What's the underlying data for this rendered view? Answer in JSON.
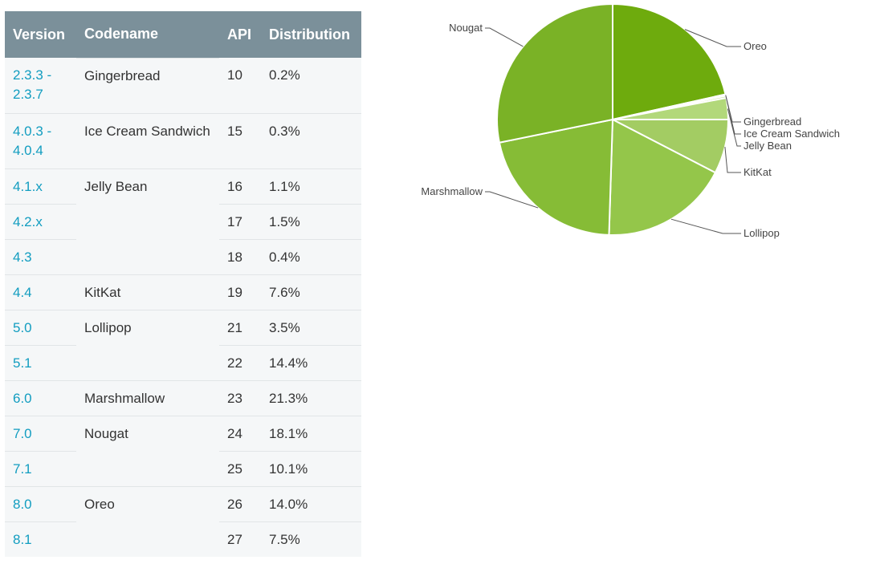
{
  "table": {
    "headers": [
      "Version",
      "Codename",
      "API",
      "Distribution"
    ],
    "rows": [
      {
        "version": "2.3.3 - 2.3.7",
        "codename": "Gingerbread",
        "api": "10",
        "distribution": "0.2%"
      },
      {
        "version": "4.0.3 - 4.0.4",
        "codename": "Ice Cream Sandwich",
        "api": "15",
        "distribution": "0.3%"
      },
      {
        "version": "4.1.x",
        "codename": "Jelly Bean",
        "api": "16",
        "distribution": "1.1%"
      },
      {
        "version": "4.2.x",
        "codename": "",
        "api": "17",
        "distribution": "1.5%"
      },
      {
        "version": "4.3",
        "codename": "",
        "api": "18",
        "distribution": "0.4%"
      },
      {
        "version": "4.4",
        "codename": "KitKat",
        "api": "19",
        "distribution": "7.6%"
      },
      {
        "version": "5.0",
        "codename": "Lollipop",
        "api": "21",
        "distribution": "3.5%"
      },
      {
        "version": "5.1",
        "codename": "",
        "api": "22",
        "distribution": "14.4%"
      },
      {
        "version": "6.0",
        "codename": "Marshmallow",
        "api": "23",
        "distribution": "21.3%"
      },
      {
        "version": "7.0",
        "codename": "Nougat",
        "api": "24",
        "distribution": "18.1%"
      },
      {
        "version": "7.1",
        "codename": "",
        "api": "25",
        "distribution": "10.1%"
      },
      {
        "version": "8.0",
        "codename": "Oreo",
        "api": "26",
        "distribution": "14.0%"
      },
      {
        "version": "8.1",
        "codename": "",
        "api": "27",
        "distribution": "7.5%"
      }
    ]
  },
  "chart_data": {
    "type": "pie",
    "slices": [
      {
        "label": "Oreo",
        "value": 21.5,
        "color": "#6eab0d"
      },
      {
        "label": "Gingerbread",
        "value": 0.2,
        "color": "#d7ecb4"
      },
      {
        "label": "Ice Cream Sandwich",
        "value": 0.3,
        "color": "#c6e39a"
      },
      {
        "label": "Jelly Bean",
        "value": 3.0,
        "color": "#b2d87a"
      },
      {
        "label": "KitKat",
        "value": 7.6,
        "color": "#a3cc63"
      },
      {
        "label": "Lollipop",
        "value": 17.9,
        "color": "#94c64a"
      },
      {
        "label": "Marshmallow",
        "value": 21.3,
        "color": "#86bc36"
      },
      {
        "label": "Nougat",
        "value": 28.2,
        "color": "#7ab226"
      }
    ],
    "colors": {
      "header_bg": "#7b909a",
      "row_bg": "#f5f7f8",
      "version_link": "#129dc0"
    }
  }
}
